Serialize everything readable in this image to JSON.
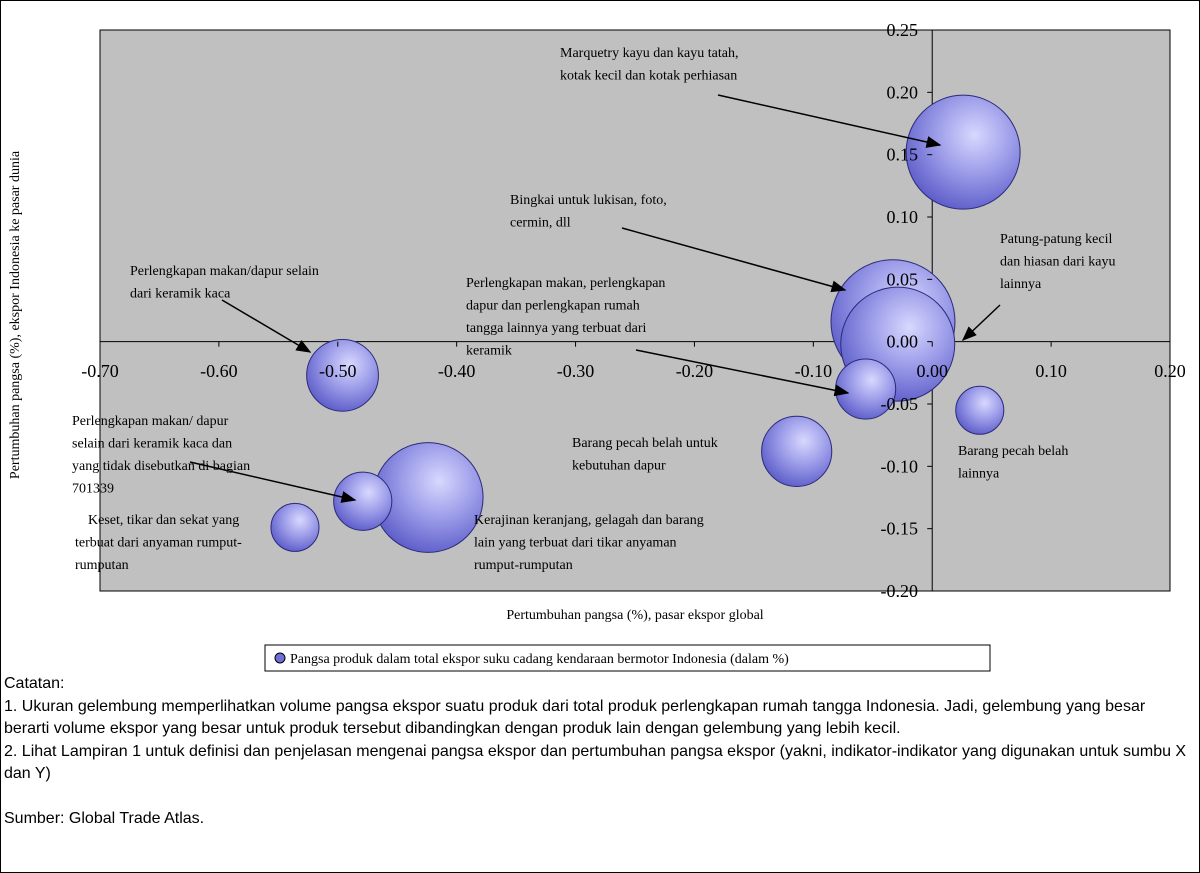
{
  "chart_data": {
    "type": "bubble",
    "xlabel": "Pertumbuhan pangsa (%), pasar ekspor global",
    "ylabel": "Pertumbuhan pangsa (%), ekspor Indonesia ke pasar dunia",
    "xlim": [
      -0.7,
      0.2
    ],
    "ylim": [
      -0.2,
      0.25
    ],
    "xticks": [
      {
        "value": -0.7,
        "label": "-0.70"
      },
      {
        "value": -0.6,
        "label": "-0.60"
      },
      {
        "value": -0.5,
        "label": "-0.50"
      },
      {
        "value": -0.4,
        "label": "-0.40"
      },
      {
        "value": -0.3,
        "label": "-0.30"
      },
      {
        "value": -0.2,
        "label": "-0.20"
      },
      {
        "value": -0.1,
        "label": "-0.10"
      },
      {
        "value": 0,
        "label": "0.00"
      },
      {
        "value": 0.1,
        "label": "0.10"
      },
      {
        "value": 0.2,
        "label": "0.20"
      }
    ],
    "yticks": [
      {
        "value": 0.25,
        "label": "0.25"
      },
      {
        "value": 0.2,
        "label": "0.20"
      },
      {
        "value": 0.15,
        "label": "0.15"
      },
      {
        "value": 0.1,
        "label": "0.10"
      },
      {
        "value": 0.05,
        "label": "0.05"
      },
      {
        "value": 0,
        "label": "0.00"
      },
      {
        "value": -0.05,
        "label": "-0.05"
      },
      {
        "value": -0.1,
        "label": "-0.10"
      },
      {
        "value": -0.15,
        "label": "-0.15"
      },
      {
        "value": -0.2,
        "label": "-0.20"
      }
    ],
    "series": [
      {
        "name": "Pangsa produk dalam total ekspor suku cadang kendaraan bermotor Indonesia (dalam %)",
        "color": "#6f6fd8",
        "x": [
          0.026,
          -0.033,
          -0.029,
          -0.056,
          0.04,
          -0.114,
          -0.424,
          -0.479,
          -0.536,
          -0.496
        ],
        "values": [
          0.152,
          0.016,
          -0.002,
          -0.038,
          -0.055,
          -0.088,
          -0.125,
          -0.128,
          -0.149,
          -0.027
        ],
        "sizes": [
          16.9,
          20,
          16.9,
          4.7,
          3.0,
          6.4,
          15.7,
          4.4,
          3.0,
          6.7
        ]
      }
    ],
    "annotations": [
      [
        "Marquetry kayu dan kayu tatah,",
        "kotak kecil dan kotak perhiasan"
      ],
      [
        "Bingkai untuk lukisan, foto,",
        "cermin, dll"
      ],
      [
        "Patung-patung kecil",
        "dan hiasan dari kayu",
        "lainnya"
      ],
      [
        "Perlengkapan makan, perlengkapan",
        "dapur dan perlengkapan rumah",
        "tangga lainnya yang terbuat dari",
        "keramik"
      ],
      [
        "Perlengkapan makan/dapur selain",
        "dari keramik kaca"
      ],
      [
        "Barang pecah belah untuk",
        "kebutuhan dapur"
      ],
      [
        "Barang pecah belah",
        "lainnya"
      ],
      [
        "Perlengkapan makan/ dapur",
        "selain dari keramik kaca dan",
        "yang tidak disebutkan di bagian",
        "701339"
      ],
      [
        "Keset, tikar dan sekat yang",
        "terbuat dari anyaman rumput-",
        "rumputan"
      ],
      [
        "Kerajinan keranjang, gelagah dan barang",
        "lain yang terbuat dari tikar anyaman",
        "rumput-rumputan"
      ]
    ]
  },
  "notes": {
    "heading": "Catatan:",
    "items": [
      "1. Ukuran gelembung memperlihatkan volume pangsa ekspor suatu produk dari total produk perlengkapan rumah tangga Indonesia. Jadi, gelembung yang besar berarti volume ekspor yang besar untuk produk tersebut dibandingkan dengan produk lain dengan gelembung yang lebih kecil.",
      "2. Lihat Lampiran 1 untuk definisi dan penjelasan mengenai pangsa ekspor dan pertumbuhan pangsa ekspor (yakni, indikator-indikator yang digunakan untuk sumbu X dan Y)"
    ],
    "source": "Sumber: Global Trade Atlas."
  }
}
